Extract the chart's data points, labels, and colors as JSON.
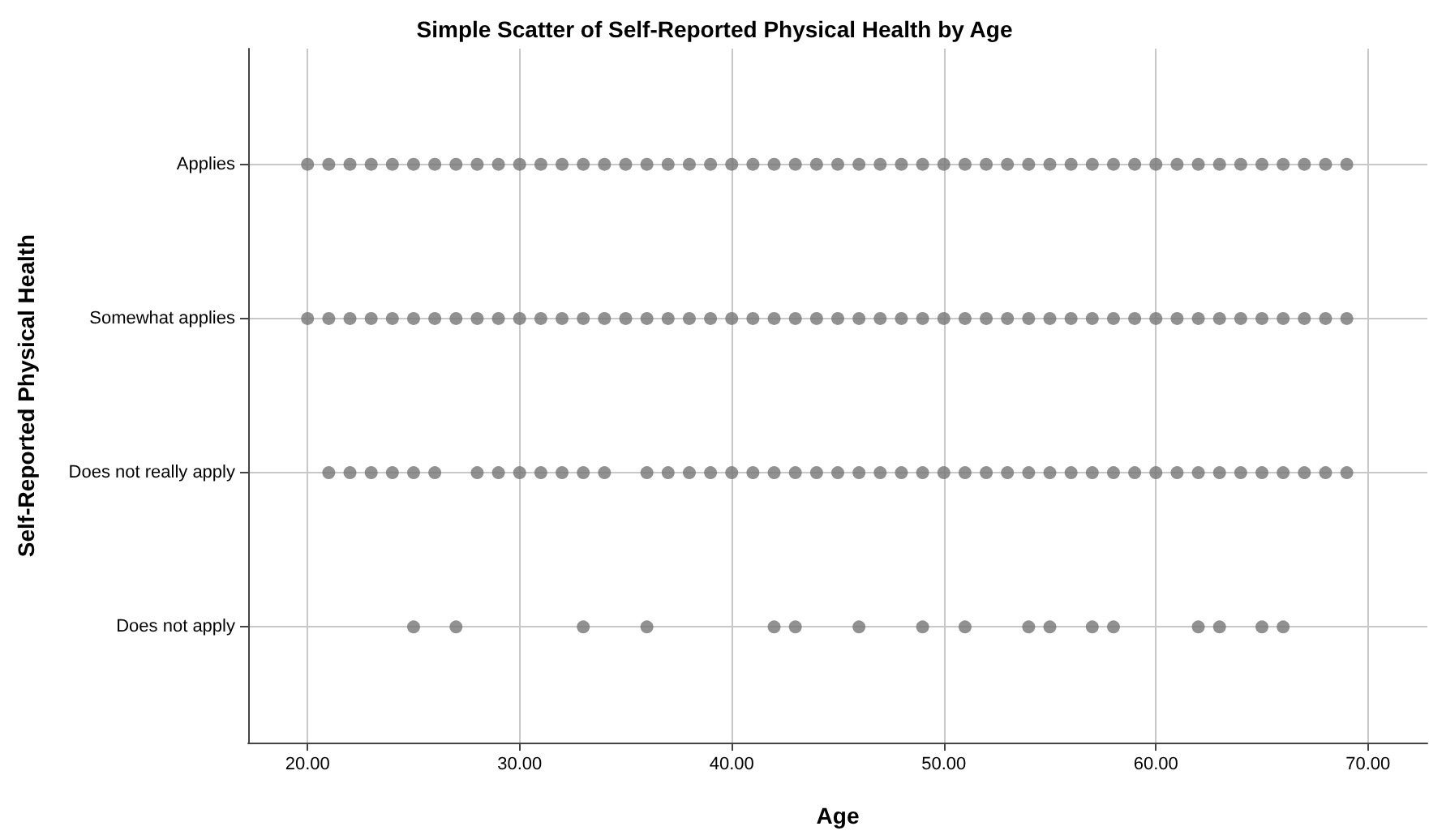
{
  "chart_data": {
    "type": "scatter",
    "orientation": "horizontal",
    "title": "Simple Scatter of Self-Reported Physical Health by Age",
    "xlabel": "Age",
    "ylabel": "Self-Reported Physical Health",
    "categories": [
      "Applies",
      "Somewhat applies",
      "Does not really apply",
      "Does not apply"
    ],
    "xlim": [
      17.2,
      72.8
    ],
    "xticks": [
      {
        "value": 20,
        "label": "20.00"
      },
      {
        "value": 30,
        "label": "30.00"
      },
      {
        "value": 40,
        "label": "40.00"
      },
      {
        "value": 50,
        "label": "50.00"
      },
      {
        "value": 60,
        "label": "60.00"
      },
      {
        "value": 70,
        "label": "70.00"
      }
    ],
    "grid": true,
    "marker": "circle",
    "series": [
      {
        "color": "#767676",
        "x": [
          "Applies",
          "Applies",
          "Applies",
          "Applies",
          "Applies",
          "Applies",
          "Applies",
          "Applies",
          "Applies",
          "Applies",
          "Applies",
          "Applies",
          "Applies",
          "Applies",
          "Applies",
          "Applies",
          "Applies",
          "Applies",
          "Applies",
          "Applies",
          "Applies",
          "Applies",
          "Applies",
          "Applies",
          "Applies",
          "Applies",
          "Applies",
          "Applies",
          "Applies",
          "Applies",
          "Applies",
          "Applies",
          "Applies",
          "Applies",
          "Applies",
          "Applies",
          "Applies",
          "Applies",
          "Applies",
          "Applies",
          "Applies",
          "Applies",
          "Applies",
          "Applies",
          "Applies",
          "Applies",
          "Applies",
          "Applies",
          "Applies",
          "Applies"
        ],
        "values": [
          20,
          21,
          22,
          23,
          24,
          25,
          26,
          27,
          28,
          29,
          30,
          31,
          32,
          33,
          34,
          35,
          36,
          37,
          38,
          39,
          40,
          41,
          42,
          43,
          44,
          45,
          46,
          47,
          48,
          49,
          50,
          51,
          52,
          53,
          54,
          55,
          56,
          57,
          58,
          59,
          60,
          61,
          62,
          63,
          64,
          65,
          66,
          67,
          68,
          69
        ]
      },
      {
        "color": "#767676",
        "x": [
          "Somewhat applies",
          "Somewhat applies",
          "Somewhat applies",
          "Somewhat applies",
          "Somewhat applies",
          "Somewhat applies",
          "Somewhat applies",
          "Somewhat applies",
          "Somewhat applies",
          "Somewhat applies",
          "Somewhat applies",
          "Somewhat applies",
          "Somewhat applies",
          "Somewhat applies",
          "Somewhat applies",
          "Somewhat applies",
          "Somewhat applies",
          "Somewhat applies",
          "Somewhat applies",
          "Somewhat applies",
          "Somewhat applies",
          "Somewhat applies",
          "Somewhat applies",
          "Somewhat applies",
          "Somewhat applies",
          "Somewhat applies",
          "Somewhat applies",
          "Somewhat applies",
          "Somewhat applies",
          "Somewhat applies",
          "Somewhat applies",
          "Somewhat applies",
          "Somewhat applies",
          "Somewhat applies",
          "Somewhat applies",
          "Somewhat applies",
          "Somewhat applies",
          "Somewhat applies",
          "Somewhat applies",
          "Somewhat applies",
          "Somewhat applies",
          "Somewhat applies",
          "Somewhat applies",
          "Somewhat applies",
          "Somewhat applies",
          "Somewhat applies",
          "Somewhat applies",
          "Somewhat applies",
          "Somewhat applies",
          "Somewhat applies"
        ],
        "values": [
          20,
          21,
          22,
          23,
          24,
          25,
          26,
          27,
          28,
          29,
          30,
          31,
          32,
          33,
          34,
          35,
          36,
          37,
          38,
          39,
          40,
          41,
          42,
          43,
          44,
          45,
          46,
          47,
          48,
          49,
          50,
          51,
          52,
          53,
          54,
          55,
          56,
          57,
          58,
          59,
          60,
          61,
          62,
          63,
          64,
          65,
          66,
          67,
          68,
          69
        ]
      },
      {
        "color": "#767676",
        "x": [
          "Does not really apply",
          "Does not really apply",
          "Does not really apply",
          "Does not really apply",
          "Does not really apply",
          "Does not really apply",
          "Does not really apply",
          "Does not really apply",
          "Does not really apply",
          "Does not really apply",
          "Does not really apply",
          "Does not really apply",
          "Does not really apply",
          "Does not really apply",
          "Does not really apply",
          "Does not really apply",
          "Does not really apply",
          "Does not really apply",
          "Does not really apply",
          "Does not really apply",
          "Does not really apply",
          "Does not really apply",
          "Does not really apply",
          "Does not really apply",
          "Does not really apply",
          "Does not really apply",
          "Does not really apply",
          "Does not really apply",
          "Does not really apply",
          "Does not really apply",
          "Does not really apply",
          "Does not really apply",
          "Does not really apply",
          "Does not really apply",
          "Does not really apply",
          "Does not really apply",
          "Does not really apply",
          "Does not really apply",
          "Does not really apply",
          "Does not really apply",
          "Does not really apply",
          "Does not really apply",
          "Does not really apply",
          "Does not really apply",
          "Does not really apply",
          "Does not really apply",
          "Does not really apply"
        ],
        "values": [
          21,
          22,
          23,
          24,
          25,
          26,
          28,
          29,
          30,
          31,
          32,
          33,
          34,
          36,
          37,
          38,
          39,
          40,
          41,
          42,
          43,
          44,
          45,
          46,
          47,
          48,
          49,
          50,
          51,
          52,
          53,
          54,
          55,
          56,
          57,
          58,
          59,
          60,
          61,
          62,
          63,
          64,
          65,
          66,
          67,
          68,
          69
        ]
      },
      {
        "color": "#767676",
        "x": [
          "Does not apply",
          "Does not apply",
          "Does not apply",
          "Does not apply",
          "Does not apply",
          "Does not apply",
          "Does not apply",
          "Does not apply",
          "Does not apply",
          "Does not apply",
          "Does not apply",
          "Does not apply",
          "Does not apply",
          "Does not apply",
          "Does not apply",
          "Does not apply",
          "Does not apply"
        ],
        "values": [
          25,
          27,
          33,
          36,
          42,
          43,
          46,
          49,
          51,
          54,
          55,
          57,
          58,
          62,
          63,
          65,
          66
        ]
      }
    ]
  }
}
